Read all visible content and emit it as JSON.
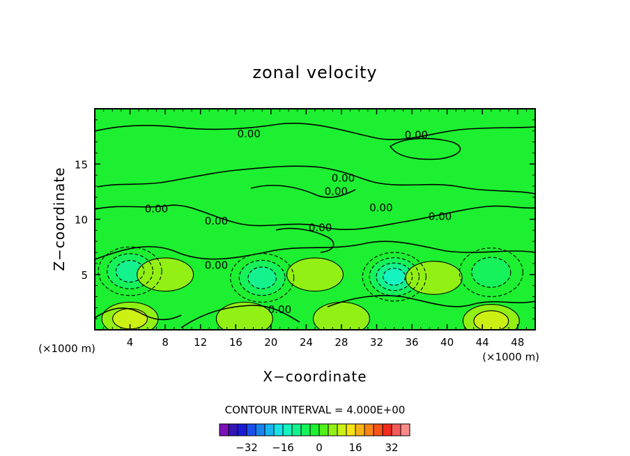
{
  "chart_data": {
    "type": "heatmap",
    "title": "zonal velocity",
    "xlabel": "X−coordinate",
    "ylabel": "Z−coordinate",
    "x_unit_left": "(×1000 m)",
    "x_unit_right": "(×1000 m)",
    "xlim": [
      0,
      50
    ],
    "ylim": [
      0,
      20
    ],
    "x_ticks": [
      4,
      8,
      12,
      16,
      20,
      24,
      28,
      32,
      36,
      40,
      44,
      48
    ],
    "y_ticks": [
      5,
      10,
      15
    ],
    "contour_interval_text": "CONTOUR INTERVAL = 4.000E+00",
    "contour_interval": 4,
    "zero_contour_label": "0.00",
    "zero_label_points": [
      [
        17.5,
        17.8
      ],
      [
        36.5,
        17.7
      ],
      [
        28.2,
        13.8
      ],
      [
        27.4,
        12.6
      ],
      [
        32.5,
        11.1
      ],
      [
        39.2,
        10.3
      ],
      [
        7.0,
        11.0
      ],
      [
        13.8,
        9.9
      ],
      [
        25.6,
        9.3
      ],
      [
        13.8,
        5.9
      ],
      [
        21.0,
        1.9
      ]
    ],
    "colorbar": {
      "colors": [
        "#7a12b8",
        "#3416b4",
        "#1a1ad6",
        "#1a50ea",
        "#1a82f0",
        "#18b4f0",
        "#16e2ea",
        "#14f4c0",
        "#14f28e",
        "#16f25a",
        "#1cf030",
        "#50f018",
        "#92f014",
        "#ccf014",
        "#f6e416",
        "#f8b416",
        "#f88416",
        "#f65418",
        "#f22a1c",
        "#f45a5a",
        "#f88a8a"
      ],
      "tick_values": [
        -32,
        -16,
        0,
        16,
        32
      ],
      "tick_labels": [
        "−32",
        "−16",
        "0",
        "16",
        "32"
      ],
      "vmin": -44,
      "vmax": 40
    },
    "field_extrema": [
      {
        "x": 4,
        "z": 1.0,
        "value": 8,
        "kind": "max"
      },
      {
        "x": 17,
        "z": 1.0,
        "value": 4,
        "kind": "max"
      },
      {
        "x": 45,
        "z": 0.8,
        "value": 8,
        "kind": "max"
      },
      {
        "x": 28,
        "z": 1.0,
        "value": 4,
        "kind": "max"
      },
      {
        "x": 4,
        "z": 5.3,
        "value": -12,
        "kind": "min"
      },
      {
        "x": 19,
        "z": 4.7,
        "value": -12,
        "kind": "min"
      },
      {
        "x": 34,
        "z": 4.8,
        "value": -16,
        "kind": "min"
      },
      {
        "x": 45,
        "z": 5.2,
        "value": -8,
        "kind": "min"
      },
      {
        "x": 8,
        "z": 5.0,
        "value": 4,
        "kind": "max"
      },
      {
        "x": 25,
        "z": 5.0,
        "value": 4,
        "kind": "max"
      },
      {
        "x": 38.5,
        "z": 4.7,
        "value": 4,
        "kind": "max"
      }
    ]
  }
}
